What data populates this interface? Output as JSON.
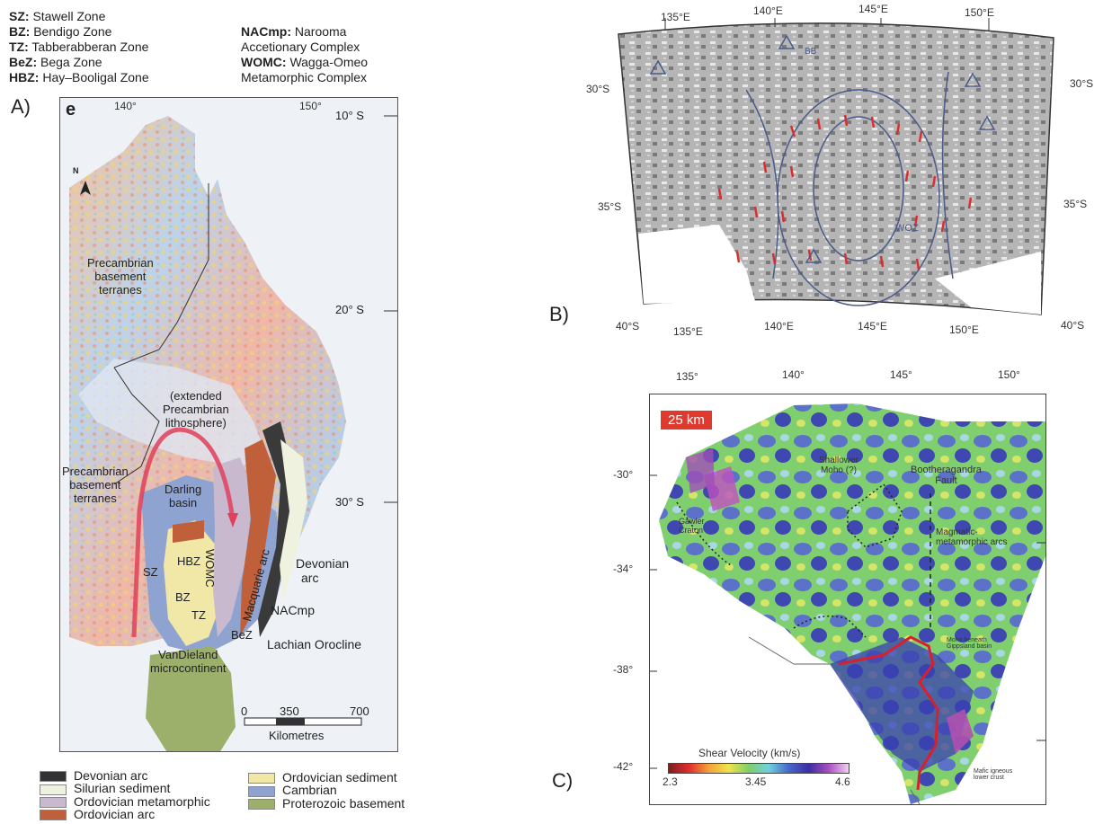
{
  "zone_list": {
    "col1": [
      {
        "abbr": "SZ:",
        "name": "Stawell Zone"
      },
      {
        "abbr": "BZ:",
        "name": "Bendigo Zone"
      },
      {
        "abbr": "TZ:",
        "name": "Tabberabberan Zone"
      },
      {
        "abbr": "BeZ:",
        "name": "Bega Zone"
      },
      {
        "abbr": "HBZ:",
        "name": "Hay–Booligal Zone"
      }
    ],
    "col2": [
      {
        "abbr": "NACmp:",
        "name": "Narooma"
      },
      {
        "abbr": "",
        "name": "Accetionary Complex"
      },
      {
        "abbr": "WOMC:",
        "name": "Wagga-Omeo"
      },
      {
        "abbr": "",
        "name": "Metamorphic Complex"
      }
    ]
  },
  "panels": {
    "a": "A)",
    "b": "B)",
    "c": "C)"
  },
  "panel_a": {
    "panel_tag": "e",
    "north": "N",
    "lon_ticks": [
      "140°",
      "150°"
    ],
    "lat_ticks": [
      "10° S",
      "20° S",
      "30° S"
    ],
    "labels": {
      "precambrian_top_1": "Precambrian",
      "precambrian_top_2": "basement",
      "precambrian_top_3": "terranes",
      "extended_1": "(extended",
      "extended_2": "Precambrian",
      "extended_3": "lithosphere)",
      "precambrian_low_1": "Precambrian",
      "precambrian_low_2": "basement",
      "precambrian_low_3": "terranes",
      "darling_1": "Darling",
      "darling_2": "basin",
      "sz": "SZ",
      "hbz": "HBZ",
      "bz": "BZ",
      "womc": "WOMC",
      "macquarie": "Macquarie arc",
      "tz": "TZ",
      "bez": "BeZ",
      "devonian_1": "Devonian",
      "devonian_2": "arc",
      "nacmp": "NACmp",
      "lachlan": "Lachian Orocline",
      "vandieland_1": "VanDieland",
      "vandieland_2": "microcontinent"
    },
    "scale": {
      "ticks": [
        "0",
        "350",
        "700"
      ],
      "unit": "Kilometres"
    }
  },
  "legend": [
    {
      "label": "Devonian arc",
      "color": "#333333"
    },
    {
      "label": "Silurian sediment",
      "color": "#f0f2e0"
    },
    {
      "label": "Ordovician metamorphic",
      "color": "#c9b9cf"
    },
    {
      "label": "Ordovician arc",
      "color": "#c0603a"
    },
    {
      "label": "Ordovician sediment",
      "color": "#f1e8a8"
    },
    {
      "label": "Cambrian",
      "color": "#8ea3cf"
    },
    {
      "label": "Proterozoic basement",
      "color": "#9cb06c"
    }
  ],
  "panel_b": {
    "lon_top": [
      "135°E",
      "140°E",
      "145°E",
      "150°E"
    ],
    "lon_bottom": [
      "135°E",
      "140°E",
      "145°E",
      "150°E"
    ],
    "lat_left": [
      "30°S",
      "35°S",
      "40°S"
    ],
    "lat_right": [
      "30°S",
      "35°S",
      "40°S"
    ],
    "labels": [
      "BB",
      "WOZ"
    ]
  },
  "panel_c": {
    "depth": "25 km",
    "lon_ticks": [
      "135°",
      "140°",
      "145°",
      "150°"
    ],
    "lat_ticks": [
      "-30°",
      "-34°",
      "-38°",
      "-42°"
    ],
    "labels": {
      "shallower_1": "Shallower",
      "shallower_2": "Moho (?)",
      "booth_1": "Bootheragandra",
      "booth_2": "Fault",
      "gawler_1": "Gawler",
      "gawler_2": "Craton",
      "magmatic_1": "Magmatic-",
      "magmatic_2": "metamorphic arcs",
      "moho_1": "Moho beneath",
      "moho_2": "Gippsland basin",
      "mafic_1": "Mafic igneous",
      "mafic_2": "lower crust"
    },
    "colorbar": {
      "title": "Shear Velocity (km/s)",
      "min": "2.3",
      "mid": "3.45",
      "max": "4.6"
    }
  },
  "colors": {
    "arc_red": "#e0405a",
    "outline_red": "#d8202c",
    "depth_bg": "#e03a2e"
  }
}
